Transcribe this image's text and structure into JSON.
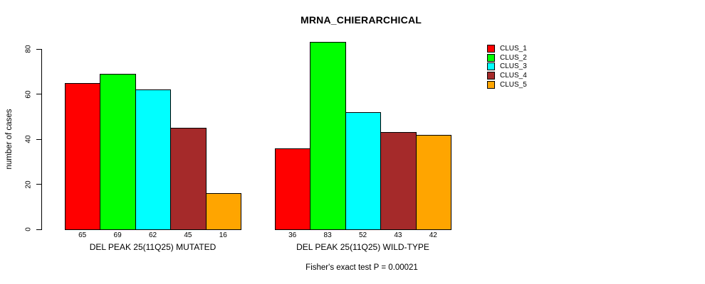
{
  "chart_data": {
    "type": "bar",
    "title": "MRNA_CHIERARCHICAL",
    "ylabel": "number of cases",
    "xlabel": "",
    "footer": "Fisher's exact test P = 0.00021",
    "ylim": [
      0,
      80
    ],
    "yticks": [
      0,
      20,
      40,
      60,
      80
    ],
    "grid": false,
    "legend_position": "right-inside",
    "background": "#ffffff",
    "axis_color": "#000000",
    "categories": [
      "DEL PEAK 25(11Q25) MUTATED",
      "DEL PEAK 25(11Q25) WILD-TYPE"
    ],
    "series": [
      {
        "name": "CLUS_1",
        "color": "#ff0000",
        "values": [
          65,
          36
        ]
      },
      {
        "name": "CLUS_2",
        "color": "#00ff00",
        "values": [
          69,
          83
        ]
      },
      {
        "name": "CLUS_3",
        "color": "#00ffff",
        "values": [
          62,
          52
        ]
      },
      {
        "name": "CLUS_4",
        "color": "#a52a2a",
        "values": [
          45,
          43
        ]
      },
      {
        "name": "CLUS_5",
        "color": "#ffa500",
        "values": [
          16,
          42
        ]
      }
    ],
    "bar_value_labels": [
      [
        65,
        69,
        62,
        45,
        16
      ],
      [
        36,
        83,
        52,
        43,
        42
      ]
    ]
  }
}
